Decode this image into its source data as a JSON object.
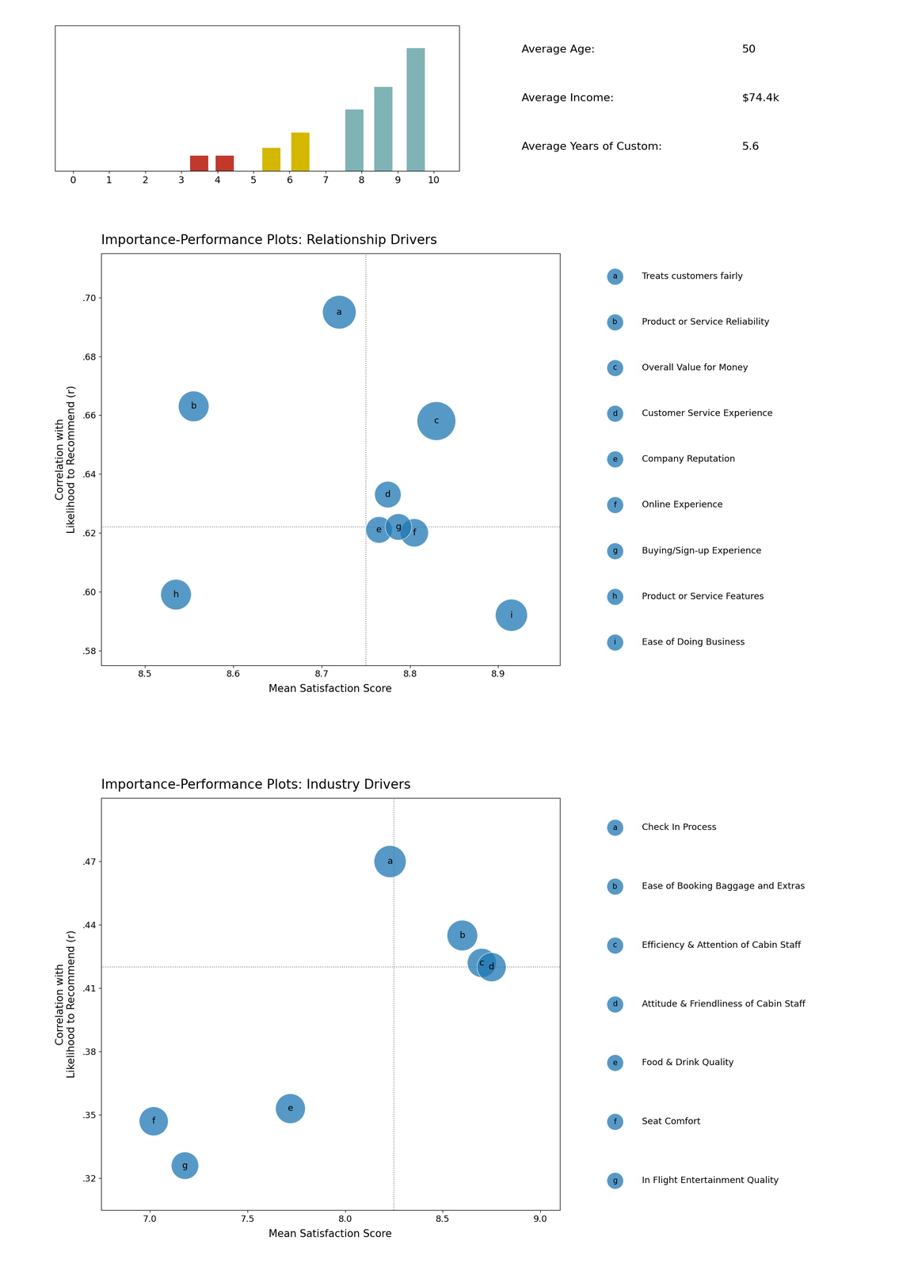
{
  "chart_data": [
    {
      "type": "bar",
      "x": [
        3.5,
        4.2,
        5.5,
        6.3,
        7.8,
        8.6,
        9.5
      ],
      "values": [
        1.0,
        1.0,
        1.5,
        2.5,
        4.0,
        5.5,
        8.0
      ],
      "colors": [
        "#c0392b",
        "#c0392b",
        "#d4b800",
        "#d4b800",
        "#7fb3b5",
        "#7fb3b5",
        "#7fb3b5"
      ],
      "xlim": [
        -0.5,
        10.7
      ],
      "xticks": [
        0,
        1,
        2,
        3,
        4,
        5,
        6,
        7,
        8,
        9,
        10
      ],
      "ylim": [
        0,
        9.5
      ],
      "tick_labels": "x",
      "annotations": [
        {
          "label": "Average Age:",
          "value": "50"
        },
        {
          "label": "Average Income:",
          "value": "$74.4k"
        },
        {
          "label": "Average Years of Custom:",
          "value": "5.6"
        }
      ]
    },
    {
      "type": "scatter",
      "title": "Importance-Performance Plots: Relationship Drivers",
      "xlabel": "Mean Satisfaction Score",
      "ylabel": "Correlation with\nLikelihood to Recommend (r)",
      "xlim": [
        8.45,
        8.97
      ],
      "ylim": [
        0.575,
        0.715
      ],
      "xticks": [
        8.5,
        8.6,
        8.7,
        8.8,
        8.9
      ],
      "yticks": [
        {
          "value": 0.58,
          "label": ".58"
        },
        {
          "value": 0.6,
          "label": ".60"
        },
        {
          "value": 0.62,
          "label": ".62"
        },
        {
          "value": 0.64,
          "label": ".64"
        },
        {
          "value": 0.66,
          "label": ".66"
        },
        {
          "value": 0.68,
          "label": ".68"
        },
        {
          "value": 0.7,
          "label": ".70"
        }
      ],
      "hline": 0.622,
      "vline": 8.75,
      "labels": [
        "a",
        "b",
        "c",
        "d",
        "e",
        "f",
        "g",
        "h",
        "i"
      ],
      "x": [
        8.72,
        8.555,
        8.83,
        8.775,
        8.765,
        8.805,
        8.787,
        8.535,
        8.915
      ],
      "values": [
        0.695,
        0.663,
        0.658,
        0.633,
        0.621,
        0.62,
        0.622,
        0.599,
        0.592
      ],
      "sizes": [
        2400,
        2000,
        3200,
        1500,
        1500,
        1700,
        1500,
        2000,
        2200
      ],
      "key_items": [
        {
          "label": "a",
          "text": "Treats customers fairly"
        },
        {
          "label": "b",
          "text": "Product or Service Reliability"
        },
        {
          "label": "c",
          "text": "Overall Value for Money"
        },
        {
          "label": "d",
          "text": "Customer Service Experience"
        },
        {
          "label": "e",
          "text": "Company Reputation"
        },
        {
          "label": "f",
          "text": "Online Experience"
        },
        {
          "label": "g",
          "text": "Buying/Sign-up Experience"
        },
        {
          "label": "h",
          "text": "Product or Service Features"
        },
        {
          "label": "i",
          "text": "Ease of Doing Business"
        }
      ]
    },
    {
      "type": "scatter",
      "title": "Importance-Performance Plots: Industry Drivers",
      "xlabel": "Mean Satisfaction Score",
      "ylabel": "Correlation with\nLikelihood to Recommend (r)",
      "xlim": [
        6.75,
        9.1
      ],
      "ylim": [
        0.305,
        0.5
      ],
      "xticks": [
        {
          "value": 7.0,
          "label": "7.0"
        },
        {
          "value": 7.5,
          "label": "7.5"
        },
        {
          "value": 8.0,
          "label": "8.0"
        },
        {
          "value": 8.5,
          "label": "8.5"
        },
        {
          "value": 9.0,
          "label": "9.0"
        }
      ],
      "yticks": [
        {
          "value": 0.32,
          "label": ".32"
        },
        {
          "value": 0.35,
          "label": ".35"
        },
        {
          "value": 0.38,
          "label": ".38"
        },
        {
          "value": 0.41,
          "label": ".41"
        },
        {
          "value": 0.44,
          "label": ".44"
        },
        {
          "value": 0.47,
          "label": ".47"
        }
      ],
      "hline": 0.42,
      "vline": 8.25,
      "labels": [
        "a",
        "b",
        "c",
        "d",
        "e",
        "f",
        "g"
      ],
      "x": [
        8.23,
        8.6,
        8.7,
        8.75,
        7.72,
        7.02,
        7.18
      ],
      "values": [
        0.47,
        0.435,
        0.422,
        0.42,
        0.353,
        0.347,
        0.326
      ],
      "sizes": [
        2200,
        2000,
        1800,
        1800,
        1900,
        1800,
        1600
      ],
      "key_items": [
        {
          "label": "a",
          "text": "Check In Process"
        },
        {
          "label": "b",
          "text": "Ease of Booking Baggage and Extras"
        },
        {
          "label": "c",
          "text": "Efficiency & Attention of Cabin Staff"
        },
        {
          "label": "d",
          "text": "Attitude & Friendliness of Cabin Staff"
        },
        {
          "label": "e",
          "text": "Food & Drink Quality"
        },
        {
          "label": "f",
          "text": "Seat Comfort"
        },
        {
          "label": "g",
          "text": "In Flight Entertainment Quality"
        }
      ]
    }
  ]
}
